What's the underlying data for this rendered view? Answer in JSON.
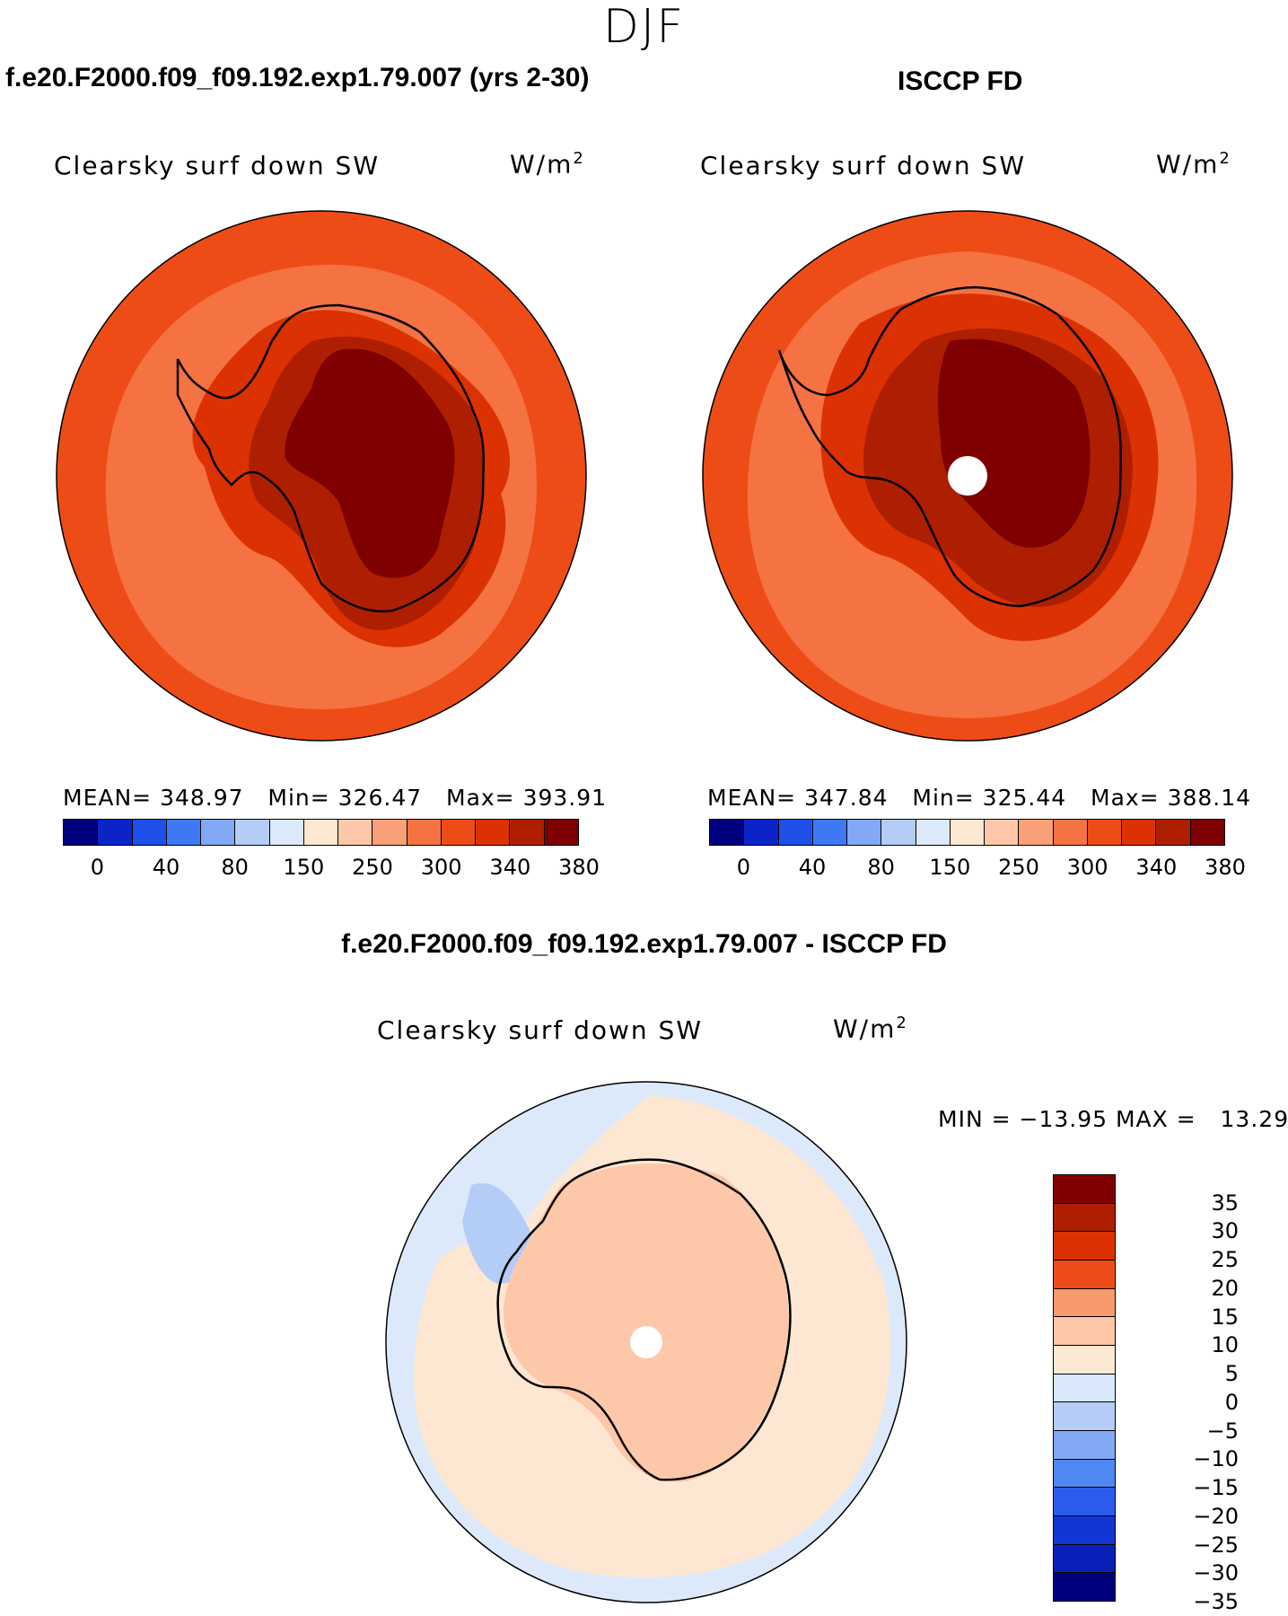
{
  "season": "DJF",
  "titles": {
    "model": "f.e20.F2000.f09_f09.192.exp1.79.007 (yrs 2-30)",
    "obs": "ISCCP FD",
    "diff": "f.e20.F2000.f09_f09.192.exp1.79.007 - ISCCP FD"
  },
  "variable": "Clearsky surf down SW",
  "units": "W/m",
  "units_exp": "2",
  "panels": [
    {
      "id": "model",
      "mean_label": "MEAN=",
      "mean": "348.97",
      "min_label": "Min=",
      "min": "326.47",
      "max_label": "Max=",
      "max": "393.91"
    },
    {
      "id": "obs",
      "mean_label": "MEAN=",
      "mean": "347.84",
      "min_label": "Min=",
      "min": "325.44",
      "max_label": "Max=",
      "max": "388.14"
    }
  ],
  "diff_stats": {
    "min_label": "MIN =",
    "min": "−13.95",
    "max_label": "MAX =",
    "max": "13.29"
  },
  "abs_colorbar": {
    "colors": [
      "#00007e",
      "#0a24c8",
      "#1e4fe8",
      "#3f78f5",
      "#82a9f5",
      "#b4cdf6",
      "#dce9fa",
      "#fde7d2",
      "#fcc8a9",
      "#f9a078",
      "#f57242",
      "#ee4c16",
      "#dc3102",
      "#ae1f01",
      "#7e0000"
    ],
    "ticks": [
      "0",
      "40",
      "80",
      "150",
      "250",
      "300",
      "340",
      "380"
    ]
  },
  "diff_colorbar": {
    "colors": [
      "#7e0000",
      "#ae1f01",
      "#dc3102",
      "#ef4b17",
      "#f79a6b",
      "#fcc6a7",
      "#fde8d4",
      "#d9e8fa",
      "#b5cdf6",
      "#82a9f5",
      "#5088f3",
      "#2b5cec",
      "#1235d6",
      "#0a20b8",
      "#00007e"
    ],
    "ticks": [
      "35",
      "30",
      "25",
      "20",
      "15",
      "10",
      "5",
      "0",
      "−5",
      "−10",
      "−15",
      "−20",
      "−25",
      "−30",
      "−35"
    ]
  },
  "map_colors": {
    "ocean_outer": "#ee4c16",
    "ocean_inner": "#f57242",
    "ice_edge": "#dc3102",
    "plateau": "#ae1f01",
    "dome": "#7e0000",
    "diff_ocean": "#dce9fa",
    "diff_warm": "#fde7d2",
    "diff_land": "#fcc8a9",
    "diff_cool": "#b4cdf6"
  }
}
